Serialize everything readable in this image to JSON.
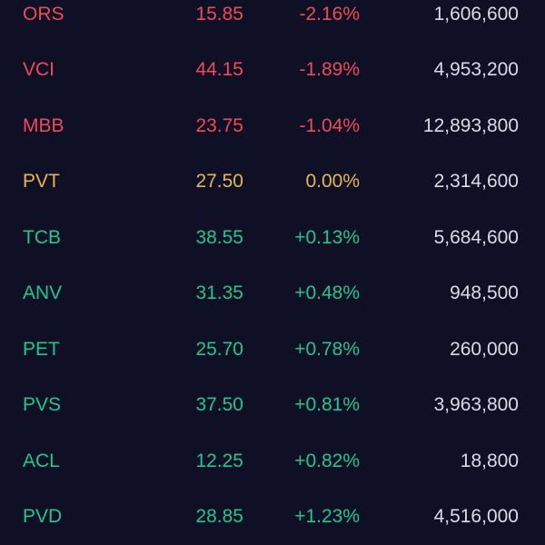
{
  "colors": {
    "background": "#0f1026",
    "down": "#ef4a57",
    "flat": "#e8b553",
    "up": "#24c48e",
    "volume": "#d9dbe6"
  },
  "stocks": [
    {
      "symbol": "ORS",
      "price": "15.85",
      "change": "-2.16%",
      "volume": "1,606,600",
      "trend": "down"
    },
    {
      "symbol": "VCI",
      "price": "44.15",
      "change": "-1.89%",
      "volume": "4,953,200",
      "trend": "down"
    },
    {
      "symbol": "MBB",
      "price": "23.75",
      "change": "-1.04%",
      "volume": "12,893,800",
      "trend": "down"
    },
    {
      "symbol": "PVT",
      "price": "27.50",
      "change": "0.00%",
      "volume": "2,314,600",
      "trend": "flat"
    },
    {
      "symbol": "TCB",
      "price": "38.55",
      "change": "+0.13%",
      "volume": "5,684,600",
      "trend": "up"
    },
    {
      "symbol": "ANV",
      "price": "31.35",
      "change": "+0.48%",
      "volume": "948,500",
      "trend": "up"
    },
    {
      "symbol": "PET",
      "price": "25.70",
      "change": "+0.78%",
      "volume": "260,000",
      "trend": "up"
    },
    {
      "symbol": "PVS",
      "price": "37.50",
      "change": "+0.81%",
      "volume": "3,963,800",
      "trend": "up"
    },
    {
      "symbol": "ACL",
      "price": "12.25",
      "change": "+0.82%",
      "volume": "18,800",
      "trend": "up"
    },
    {
      "symbol": "PVD",
      "price": "28.85",
      "change": "+1.23%",
      "volume": "4,516,000",
      "trend": "up"
    }
  ]
}
